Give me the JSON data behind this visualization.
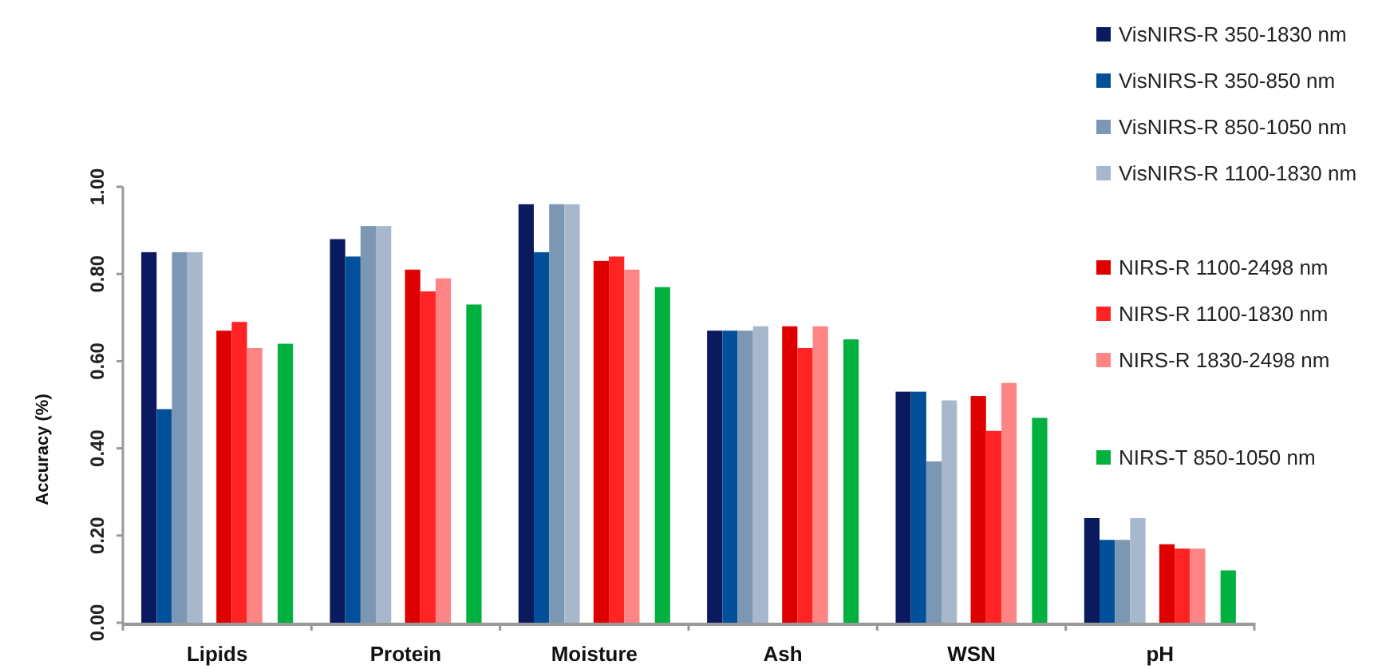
{
  "chart_data": {
    "type": "bar",
    "ylabel": "Accuracy (%)",
    "categories": [
      "Lipids",
      "Protein",
      "Moisture",
      "Ash",
      "WSN",
      "pH"
    ],
    "series": [
      {
        "name": "VisNIRS-R 350-1830 nm",
        "color": "#0b1a5e",
        "values": [
          0.85,
          0.88,
          0.96,
          0.67,
          0.53,
          0.24
        ]
      },
      {
        "name": "VisNIRS-R 350-850 nm",
        "color": "#03509a",
        "values": [
          0.49,
          0.84,
          0.85,
          0.67,
          0.53,
          0.19
        ]
      },
      {
        "name": "VisNIRS-R 850-1050 nm",
        "color": "#7b97b4",
        "values": [
          0.85,
          0.91,
          0.96,
          0.67,
          0.37,
          0.19
        ]
      },
      {
        "name": "VisNIRS-R 1100-1830 nm",
        "color": "#a7b7cc",
        "values": [
          0.85,
          0.91,
          0.96,
          0.68,
          0.51,
          0.24
        ]
      },
      {
        "name": "NIRS-R 1100-2498 nm",
        "color": "#de0000",
        "values": [
          0.67,
          0.81,
          0.83,
          0.68,
          0.52,
          0.18
        ]
      },
      {
        "name": "NIRS-R 1100-1830 nm",
        "color": "#ff2323",
        "values": [
          0.69,
          0.76,
          0.84,
          0.63,
          0.44,
          0.17
        ]
      },
      {
        "name": "NIRS-R 1830-2498 nm",
        "color": "#ff8585",
        "values": [
          0.63,
          0.79,
          0.81,
          0.68,
          0.55,
          0.17
        ]
      },
      {
        "name": "NIRS-T 850-1050 nm",
        "color": "#00b140",
        "values": [
          0.64,
          0.73,
          0.77,
          0.65,
          0.47,
          0.12
        ]
      }
    ],
    "ylim": [
      0,
      1
    ],
    "yticks": [
      {
        "value": 0,
        "label": "0.00"
      },
      {
        "value": 0.2,
        "label": "0.20"
      },
      {
        "value": 0.4,
        "label": "0.40"
      },
      {
        "value": 0.6,
        "label": "0.60"
      },
      {
        "value": 0.8,
        "label": "0.80"
      },
      {
        "value": 1,
        "label": "1.00"
      }
    ],
    "legend": "top right",
    "grid": false
  }
}
